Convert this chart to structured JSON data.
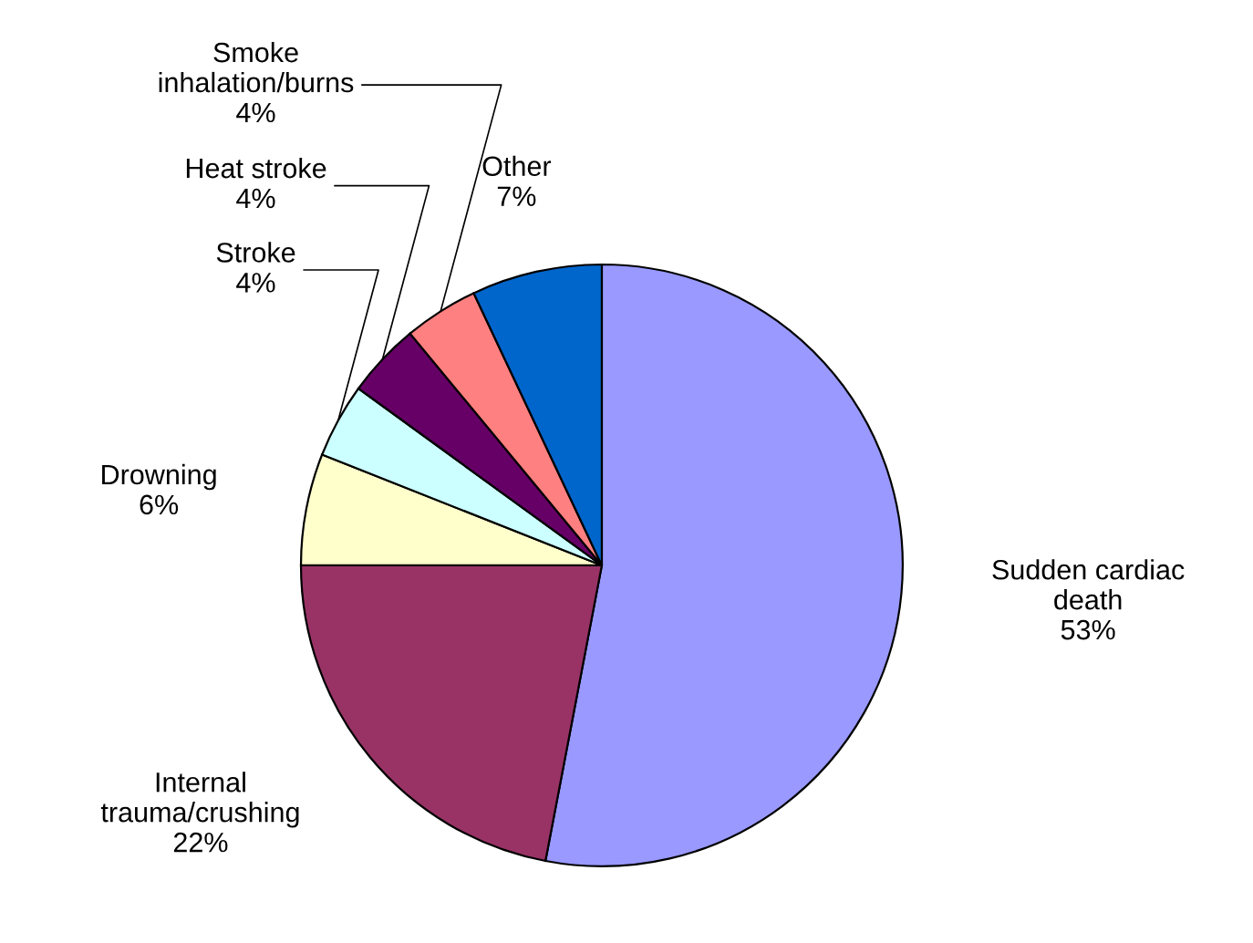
{
  "chart_data": {
    "type": "pie",
    "categories": [
      "Sudden cardiac\ndeath",
      "Internal\ntrauma/crushing",
      "Drowning",
      "Stroke",
      "Heat stroke",
      "Smoke\ninhalation/burns",
      "Other"
    ],
    "values": [
      53,
      22,
      6,
      4,
      4,
      4,
      7
    ],
    "colors": [
      "#9999ff",
      "#993366",
      "#ffffcc",
      "#ccffff",
      "#660066",
      "#ff8080",
      "#0066cc"
    ],
    "value_labels": [
      "53%",
      "22%",
      "6%",
      "4%",
      "4%",
      "4%",
      "7%"
    ]
  }
}
